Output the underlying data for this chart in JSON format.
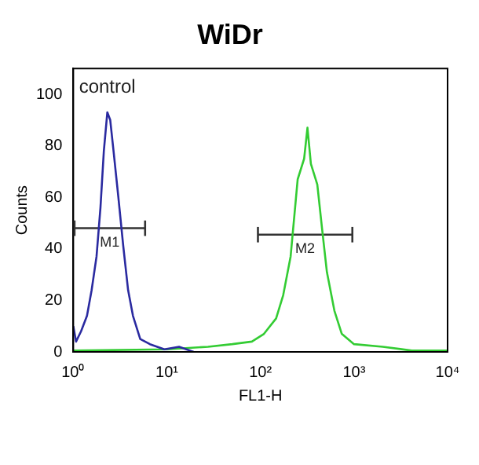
{
  "chart_data": {
    "type": "line",
    "title": "WiDr",
    "xlabel": "FL1-H",
    "ylabel": "Counts",
    "log": "x",
    "marker": "none",
    "xlim": [
      1,
      10000
    ],
    "xticks": [
      {
        "value": 1,
        "label": "10⁰"
      },
      {
        "value": 10,
        "label": "10¹"
      },
      {
        "value": 100,
        "label": "10²"
      },
      {
        "value": 1000,
        "label": "10³"
      },
      {
        "value": 10000,
        "label": "10⁴"
      }
    ],
    "ylim": [
      0,
      110
    ],
    "yticks": [
      0,
      20,
      40,
      60,
      80,
      100
    ],
    "series": [
      {
        "name": "control",
        "color": "#2a2aa0",
        "x": [
          1,
          1.07,
          1.21,
          1.4,
          1.57,
          1.77,
          1.95,
          2.12,
          2.31,
          2.48,
          2.69,
          3.03,
          3.42,
          3.85,
          4.34,
          5.19,
          6.59,
          9.4,
          13.5,
          19.3
        ],
        "values": [
          10,
          4,
          8,
          14,
          24,
          37,
          56,
          78,
          93,
          90,
          78,
          60,
          41,
          24,
          14,
          5,
          3,
          1,
          2,
          0
        ]
      },
      {
        "color": "#33cc33",
        "x": [
          1,
          10,
          27.5,
          50,
          81,
          109,
          147,
          175,
          210,
          250,
          293,
          318,
          346,
          405,
          455,
          513,
          617,
          740,
          1000,
          2030,
          4150,
          10000
        ],
        "values": [
          0.5,
          1,
          2,
          3,
          4,
          7,
          13,
          22,
          37,
          67,
          75,
          87,
          73,
          65,
          48,
          31,
          16,
          7,
          3,
          2,
          0.5,
          0.5
        ]
      },
      {
        "name": "M1",
        "type": "line",
        "color": "#333333",
        "x": [
          1.03,
          5.85
        ],
        "values": [
          48,
          48
        ],
        "errors": [
          3,
          3
        ]
      },
      {
        "name": "M2",
        "type": "line",
        "color": "#333333",
        "x": [
          94,
          960
        ],
        "values": [
          45.5,
          45.5
        ],
        "errors": [
          3,
          3
        ]
      }
    ]
  }
}
